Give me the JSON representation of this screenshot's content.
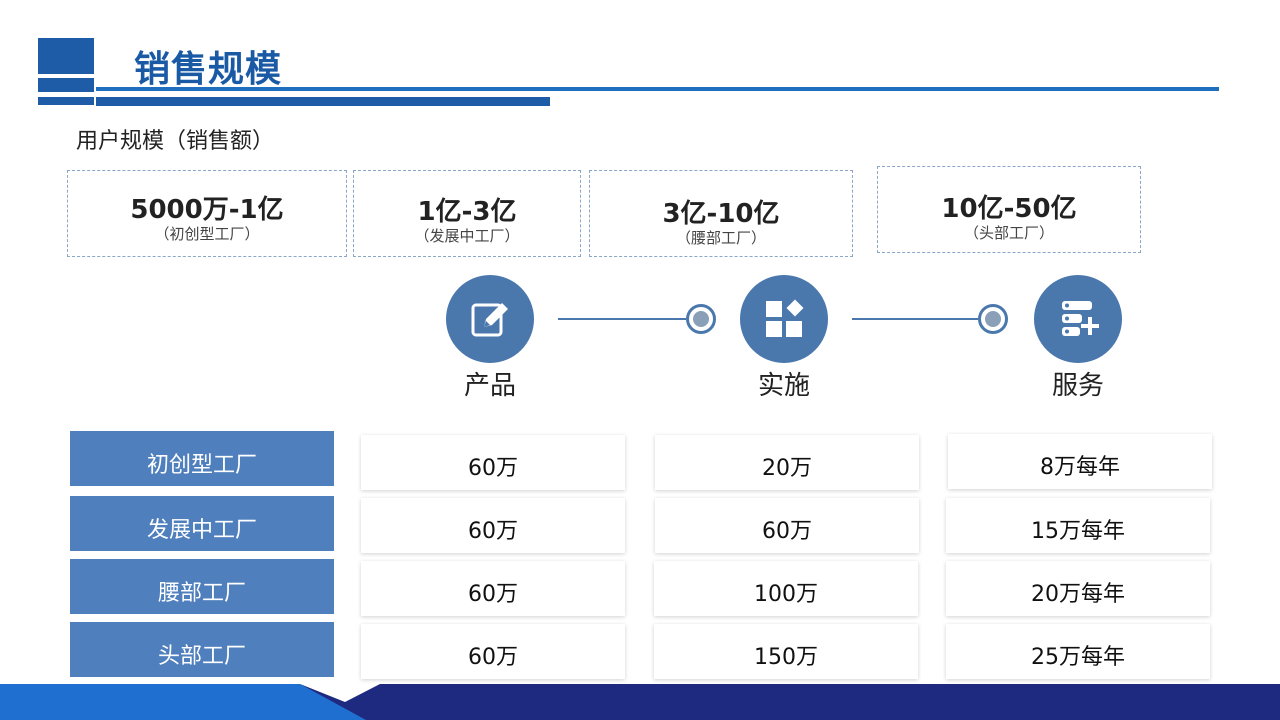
{
  "header": {
    "title": "销售规模"
  },
  "subtitle": "用户规模（销售额）",
  "tiers": [
    {
      "range": "5000万-1亿",
      "desc": "（初创型工厂）"
    },
    {
      "range": "1亿-3亿",
      "desc": "（发展中工厂）"
    },
    {
      "range": "3亿-10亿",
      "desc": "（腰部工厂）"
    },
    {
      "range": "10亿-50亿",
      "desc": "（头部工厂）"
    }
  ],
  "steps": [
    {
      "label": "产品",
      "icon": "edit-icon"
    },
    {
      "label": "实施",
      "icon": "grid-icon"
    },
    {
      "label": "服务",
      "icon": "server-add-icon"
    }
  ],
  "table": {
    "rows": [
      {
        "name": "初创型工厂",
        "values": [
          "60万",
          "20万",
          "8万每年"
        ]
      },
      {
        "name": "发展中工厂",
        "values": [
          "60万",
          "60万",
          "15万每年"
        ]
      },
      {
        "name": "腰部工厂",
        "values": [
          "60万",
          "100万",
          "20万每年"
        ]
      },
      {
        "name": "头部工厂",
        "values": [
          "60万",
          "150万",
          "25万每年"
        ]
      }
    ]
  },
  "colors": {
    "brand": "#1a5aa5",
    "accent": "#4a78ad",
    "row_header": "#4f7fbd",
    "footer_dark": "#1e2a80",
    "footer_light": "#1f6fd0"
  }
}
